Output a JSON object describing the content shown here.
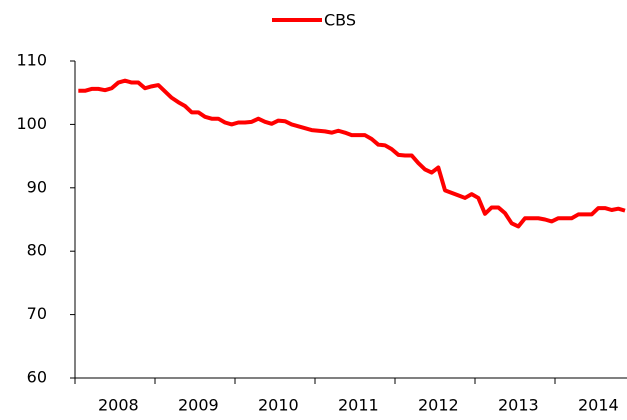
{
  "chart_data": {
    "type": "line",
    "categories": [
      null,
      null,
      null,
      null,
      null,
      null,
      "2008",
      null,
      null,
      null,
      null,
      null,
      null,
      null,
      null,
      null,
      null,
      null,
      "2009",
      null,
      null,
      null,
      null,
      null,
      null,
      null,
      null,
      null,
      null,
      null,
      "2010",
      null,
      null,
      null,
      null,
      null,
      null,
      null,
      null,
      null,
      null,
      null,
      "2011",
      null,
      null,
      null,
      null,
      null,
      null,
      null,
      null,
      null,
      null,
      null,
      "2012",
      null,
      null,
      null,
      null,
      null,
      null,
      null,
      null,
      null,
      null,
      null,
      "2013",
      null,
      null,
      null,
      null,
      null,
      null,
      null,
      null,
      null,
      null,
      null,
      "2014",
      null,
      null,
      null,
      null
    ],
    "series": [
      {
        "name": "CBS",
        "color": "#ff0000",
        "values": [
          105.3,
          105.3,
          105.6,
          105.6,
          105.4,
          105.7,
          106.6,
          106.9,
          106.6,
          106.6,
          105.7,
          106.0,
          106.2,
          105.2,
          104.2,
          103.5,
          102.9,
          101.9,
          101.9,
          101.2,
          100.9,
          100.9,
          100.3,
          100.0,
          100.3,
          100.3,
          100.4,
          100.9,
          100.4,
          100.1,
          100.6,
          100.5,
          100.0,
          99.7,
          99.4,
          99.1,
          99.0,
          98.9,
          98.7,
          99.0,
          98.7,
          98.3,
          98.3,
          98.3,
          97.7,
          96.8,
          96.7,
          96.1,
          95.2,
          95.1,
          95.1,
          93.9,
          92.9,
          92.4,
          93.2,
          89.6,
          89.2,
          88.8,
          88.4,
          89.0,
          88.4,
          85.9,
          86.9,
          86.9,
          86.0,
          84.4,
          83.9,
          85.2,
          85.2,
          85.2,
          85.0,
          84.7,
          85.2,
          85.2,
          85.2,
          85.8,
          85.8,
          85.8,
          86.8,
          86.8,
          86.5,
          86.7,
          86.4
        ]
      }
    ],
    "ylim": [
      60,
      110
    ],
    "yticks": [
      60,
      70,
      80,
      90,
      100,
      110
    ],
    "legend": "top"
  }
}
